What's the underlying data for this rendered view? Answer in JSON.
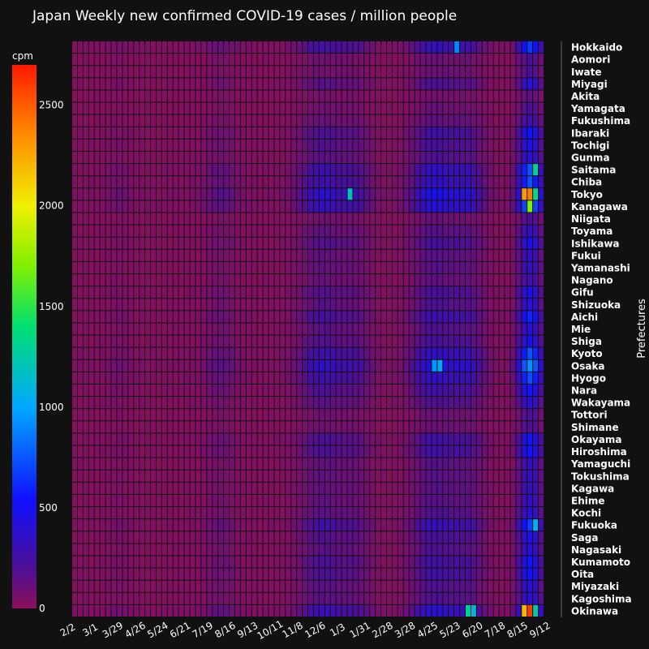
{
  "chart_data": {
    "type": "heatmap",
    "title": "Japan Weekly new confirmed COVID-19 cases / million people",
    "ylabel": "Prefectures",
    "colorbar_title": "cpm",
    "colorbar_ticks": [
      0,
      500,
      1000,
      1500,
      2000,
      2500
    ],
    "z_range": [
      0,
      2700
    ],
    "x_tick_labels": [
      "2/2",
      "3/1",
      "3/29",
      "4/26",
      "5/24",
      "6/21",
      "7/19",
      "8/16",
      "9/13",
      "10/11",
      "11/8",
      "12/6",
      "1/3",
      "1/31",
      "2/28",
      "3/28",
      "4/25",
      "5/23",
      "6/20",
      "7/18",
      "8/15",
      "9/12"
    ],
    "weeks_count": 84,
    "prefectures": [
      "Hokkaido",
      "Aomori",
      "Iwate",
      "Miyagi",
      "Akita",
      "Yamagata",
      "Fukushima",
      "Ibaraki",
      "Tochigi",
      "Gunma",
      "Saitama",
      "Chiba",
      "Tokyo",
      "Kanagawa",
      "Niigata",
      "Toyama",
      "Ishikawa",
      "Fukui",
      "Yamanashi",
      "Nagano",
      "Gifu",
      "Shizuoka",
      "Aichi",
      "Mie",
      "Shiga",
      "Kyoto",
      "Osaka",
      "Hyogo",
      "Nara",
      "Wakayama",
      "Tottori",
      "Shimane",
      "Okayama",
      "Hiroshima",
      "Yamaguchi",
      "Tokushima",
      "Kagawa",
      "Ehime",
      "Kochi",
      "Fukuoka",
      "Saga",
      "Nagasaki",
      "Kumamoto",
      "Oita",
      "Miyazaki",
      "Kagoshima",
      "Okinawa"
    ],
    "intensity": [
      1.0,
      0.3,
      0.3,
      0.6,
      0.2,
      0.3,
      0.4,
      0.8,
      0.7,
      0.6,
      1.1,
      1.1,
      1.5,
      1.3,
      0.3,
      0.5,
      0.7,
      0.5,
      0.5,
      0.4,
      0.7,
      0.6,
      0.9,
      0.6,
      0.7,
      1.1,
      1.4,
      1.1,
      0.8,
      0.6,
      0.3,
      0.3,
      0.8,
      0.8,
      0.5,
      0.5,
      0.5,
      0.5,
      0.6,
      1.0,
      0.7,
      0.6,
      0.8,
      0.8,
      0.6,
      0.6,
      1.2
    ],
    "hotspots": [
      {
        "prefecture": "Tokyo",
        "week": 80,
        "value": 2300
      },
      {
        "prefecture": "Tokyo",
        "week": 81,
        "value": 2400
      },
      {
        "prefecture": "Tokyo",
        "week": 82,
        "value": 1350
      },
      {
        "prefecture": "Tokyo",
        "week": 49,
        "value": 1150
      },
      {
        "prefecture": "Kanagawa",
        "week": 81,
        "value": 1700
      },
      {
        "prefecture": "Saitama",
        "week": 82,
        "value": 1300
      },
      {
        "prefecture": "Okinawa",
        "week": 81,
        "value": 2600
      },
      {
        "prefecture": "Okinawa",
        "week": 80,
        "value": 2200
      },
      {
        "prefecture": "Okinawa",
        "week": 82,
        "value": 1250
      },
      {
        "prefecture": "Okinawa",
        "week": 70,
        "value": 1300
      },
      {
        "prefecture": "Okinawa",
        "week": 71,
        "value": 1100
      },
      {
        "prefecture": "Hokkaido",
        "week": 68,
        "value": 900
      },
      {
        "prefecture": "Osaka",
        "week": 64,
        "value": 950
      },
      {
        "prefecture": "Osaka",
        "week": 65,
        "value": 1000
      },
      {
        "prefecture": "Fukuoka",
        "week": 82,
        "value": 1050
      }
    ]
  }
}
